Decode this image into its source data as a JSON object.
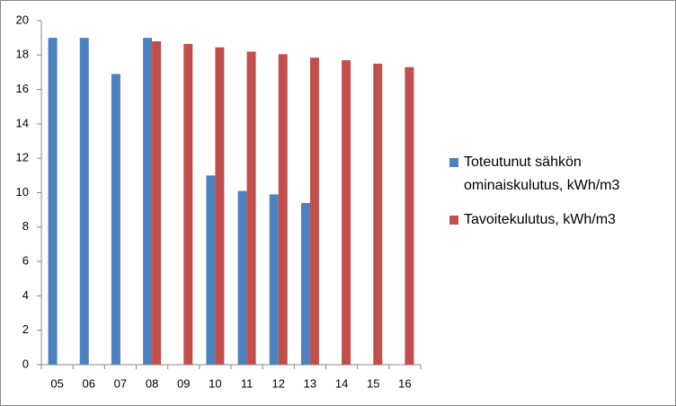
{
  "chart_data": {
    "type": "bar",
    "categories": [
      "05",
      "06",
      "07",
      "08",
      "09",
      "10",
      "11",
      "12",
      "13",
      "14",
      "15",
      "16"
    ],
    "series": [
      {
        "name": "Toteutunut sähkön ominaiskulutus, kWh/m3",
        "color": "#4f81bd",
        "values": [
          19,
          19,
          16.9,
          19,
          null,
          11,
          10.1,
          9.9,
          9.4,
          null,
          null,
          null
        ]
      },
      {
        "name": "Tavoitekulutus, kWh/m3",
        "color": "#c0504d",
        "values": [
          null,
          null,
          null,
          18.8,
          18.65,
          18.45,
          18.2,
          18.05,
          17.85,
          17.7,
          17.5,
          17.3
        ]
      }
    ],
    "ylim": [
      0,
      20
    ],
    "yticks": [
      0,
      2,
      4,
      6,
      8,
      10,
      12,
      14,
      16,
      18,
      20
    ],
    "grid": false,
    "legend": "right"
  }
}
